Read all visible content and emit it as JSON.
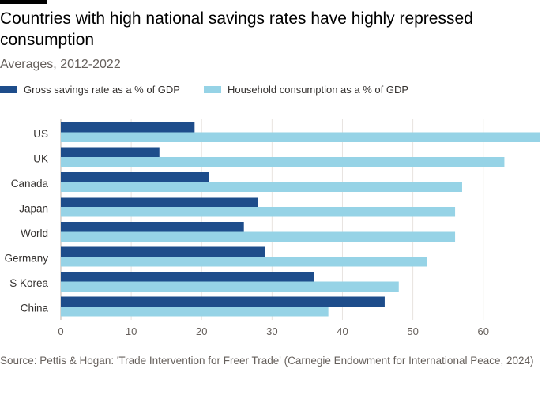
{
  "header": {
    "title": "Countries with high national savings rates have highly repressed consumption",
    "subtitle": "Averages, 2012-2022"
  },
  "footer": {
    "source": "Source: Pettis & Hogan: 'Trade Intervention for Freer Trade' (Carnegie Endowment for International Peace, 2024)"
  },
  "chart_data": {
    "type": "bar",
    "orientation": "horizontal",
    "title": "Countries with high national savings rates have highly repressed consumption",
    "subtitle": "Averages, 2012-2022",
    "categories": [
      "US",
      "UK",
      "Canada",
      "Japan",
      "World",
      "Germany",
      "S Korea",
      "China"
    ],
    "series": [
      {
        "name": "Gross savings rate as a % of GDP",
        "color": "#1e4d8b",
        "values": [
          19,
          14,
          21,
          28,
          26,
          29,
          36,
          46
        ]
      },
      {
        "name": "Household consumption as a % of GDP",
        "color": "#96d3e6",
        "values": [
          68,
          63,
          57,
          56,
          56,
          52,
          48,
          38
        ]
      }
    ],
    "xticks": [
      0,
      10,
      20,
      30,
      40,
      50,
      60
    ],
    "xlim": [
      0,
      68
    ],
    "xlabel": "",
    "ylabel": "",
    "grid": true,
    "legend_position": "top-left"
  }
}
